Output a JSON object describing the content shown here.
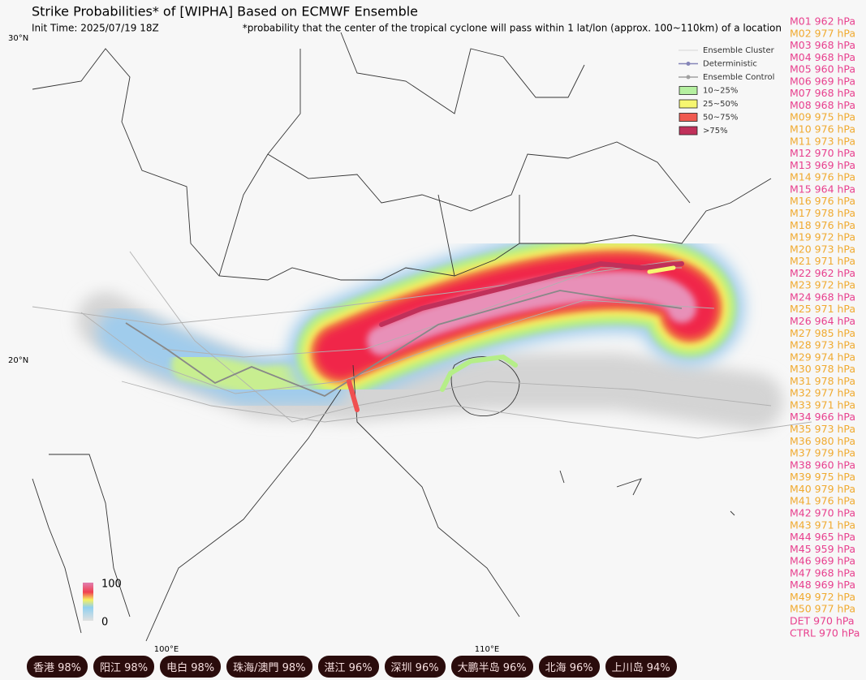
{
  "header": {
    "title": "Strike Probabilities* of [WIPHA] Based on ECMWF Ensemble",
    "init_time": "Init Time: 2025/07/19 18Z",
    "note": "*probability that the center of the tropical cyclone will pass within 1 lat/lon (approx. 100~110km) of a location"
  },
  "axes": {
    "lat": [
      "30°N",
      "20°N"
    ],
    "lon": [
      "100°E",
      "110°E"
    ]
  },
  "legend": [
    {
      "label": "Ensemble Cluster",
      "kind": "line",
      "color": "#c8c8c8"
    },
    {
      "label": "Deterministic",
      "kind": "dotline",
      "color": "#8585b8"
    },
    {
      "label": "Ensemble Control",
      "kind": "dotline",
      "color": "#a0a0a0"
    },
    {
      "label": "10~25%",
      "kind": "box",
      "color": "#b5f0a0"
    },
    {
      "label": "25~50%",
      "kind": "box",
      "color": "#f6f670"
    },
    {
      "label": "50~75%",
      "kind": "box",
      "color": "#f05a50"
    },
    {
      "label": ">75%",
      "kind": "box",
      "color": "#c0305a"
    }
  ],
  "colorbar": {
    "max": "100",
    "min": "0"
  },
  "members": [
    {
      "text": "M01 962 hPa",
      "color": "#e8408e"
    },
    {
      "text": "M02 977 hPa",
      "color": "#f0aa30"
    },
    {
      "text": "M03 968 hPa",
      "color": "#e8408e"
    },
    {
      "text": "M04 968 hPa",
      "color": "#e8408e"
    },
    {
      "text": "M05 960 hPa",
      "color": "#e8408e"
    },
    {
      "text": "M06 969 hPa",
      "color": "#e8408e"
    },
    {
      "text": "M07 968 hPa",
      "color": "#e8408e"
    },
    {
      "text": "M08 968 hPa",
      "color": "#e8408e"
    },
    {
      "text": "M09 975 hPa",
      "color": "#f0aa30"
    },
    {
      "text": "M10 976 hPa",
      "color": "#f0aa30"
    },
    {
      "text": "M11 973 hPa",
      "color": "#f0aa30"
    },
    {
      "text": "M12 970 hPa",
      "color": "#e8408e"
    },
    {
      "text": "M13 969 hPa",
      "color": "#e8408e"
    },
    {
      "text": "M14 976 hPa",
      "color": "#f0aa30"
    },
    {
      "text": "M15 964 hPa",
      "color": "#e8408e"
    },
    {
      "text": "M16 976 hPa",
      "color": "#f0aa30"
    },
    {
      "text": "M17 978 hPa",
      "color": "#f0aa30"
    },
    {
      "text": "M18 976 hPa",
      "color": "#f0aa30"
    },
    {
      "text": "M19 972 hPa",
      "color": "#f0aa30"
    },
    {
      "text": "M20 973 hPa",
      "color": "#f0aa30"
    },
    {
      "text": "M21 971 hPa",
      "color": "#f0aa30"
    },
    {
      "text": "M22 962 hPa",
      "color": "#e8408e"
    },
    {
      "text": "M23 972 hPa",
      "color": "#f0aa30"
    },
    {
      "text": "M24 968 hPa",
      "color": "#e8408e"
    },
    {
      "text": "M25 971 hPa",
      "color": "#f0aa30"
    },
    {
      "text": "M26 964 hPa",
      "color": "#e8408e"
    },
    {
      "text": "M27 985 hPa",
      "color": "#f0aa30"
    },
    {
      "text": "M28 973 hPa",
      "color": "#f0aa30"
    },
    {
      "text": "M29 974 hPa",
      "color": "#f0aa30"
    },
    {
      "text": "M30 978 hPa",
      "color": "#f0aa30"
    },
    {
      "text": "M31 978 hPa",
      "color": "#f0aa30"
    },
    {
      "text": "M32 977 hPa",
      "color": "#f0aa30"
    },
    {
      "text": "M33 971 hPa",
      "color": "#f0aa30"
    },
    {
      "text": "M34 966 hPa",
      "color": "#e8408e"
    },
    {
      "text": "M35 973 hPa",
      "color": "#f0aa30"
    },
    {
      "text": "M36 980 hPa",
      "color": "#f0aa30"
    },
    {
      "text": "M37 979 hPa",
      "color": "#f0aa30"
    },
    {
      "text": "M38 960 hPa",
      "color": "#e8408e"
    },
    {
      "text": "M39 975 hPa",
      "color": "#f0aa30"
    },
    {
      "text": "M40 979 hPa",
      "color": "#f0aa30"
    },
    {
      "text": "M41 976 hPa",
      "color": "#f0aa30"
    },
    {
      "text": "M42 970 hPa",
      "color": "#e8408e"
    },
    {
      "text": "M43 971 hPa",
      "color": "#f0aa30"
    },
    {
      "text": "M44 965 hPa",
      "color": "#e8408e"
    },
    {
      "text": "M45 959 hPa",
      "color": "#e8408e"
    },
    {
      "text": "M46 969 hPa",
      "color": "#e8408e"
    },
    {
      "text": "M47 968 hPa",
      "color": "#e8408e"
    },
    {
      "text": "M48 969 hPa",
      "color": "#e8408e"
    },
    {
      "text": "M49 972 hPa",
      "color": "#f0aa30"
    },
    {
      "text": "M50 977 hPa",
      "color": "#f0aa30"
    },
    {
      "text": "DET 970 hPa",
      "color": "#e8408e"
    },
    {
      "text": "CTRL 970 hPa",
      "color": "#e8408e"
    }
  ],
  "badges": [
    "香港 98%",
    "阳江 98%",
    "电白 98%",
    "珠海/澳門 98%",
    "湛江 96%",
    "深圳 96%",
    "大鹏半岛 96%",
    "北海 96%",
    "上川岛 94%"
  ]
}
